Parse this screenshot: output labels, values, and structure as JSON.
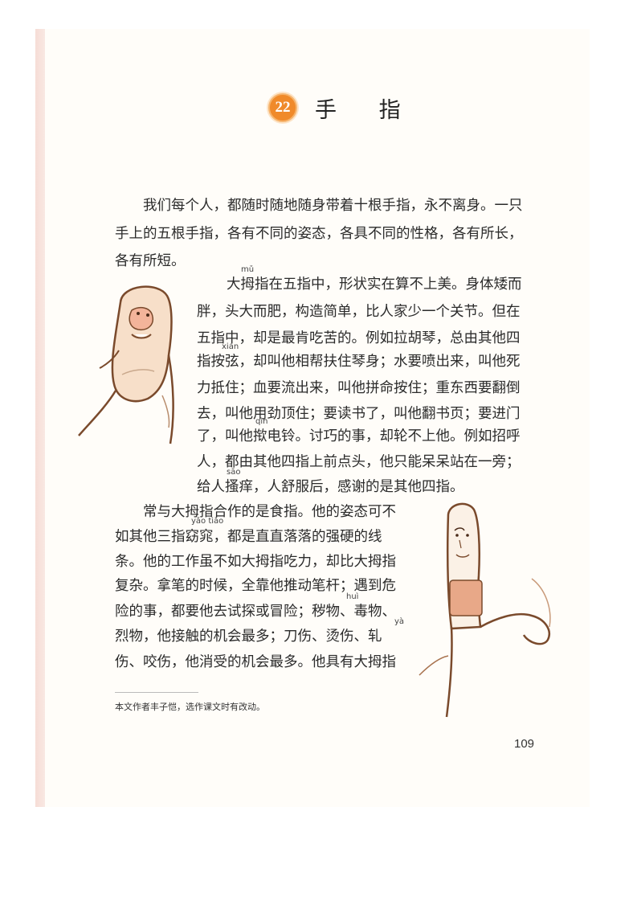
{
  "lesson": {
    "number": "22",
    "title": "手 指"
  },
  "paragraph1": [
    "我们每个人，都随时随地随身带着十根手指，永不离身。一只",
    "手上的五根手指，各有不同的姿态，各具不同的性格，各有所长，",
    "各有所短。"
  ],
  "paragraph2": [
    "大拇指在五指中，形状实在算不上美。身体矮而",
    "胖，头大而肥，构造简单，比人家少一个关节。但在",
    "五指中，却是最肯吃苦的。例如拉胡琴，总由其他四",
    "指按弦，却叫他相帮扶住琴身；水要喷出来，叫他死",
    "力抵住；血要流出来，叫他拼命按住；重东西要翻倒",
    "去，叫他用劲顶住；要读书了，叫他翻书页；要进门",
    "了，叫他揿电铃。讨巧的事，却轮不上他。例如招呼",
    "人，都由其他四指上前点头，他只能呆呆站在一旁；",
    "给人搔痒，人舒服后，感谢的是其他四指。"
  ],
  "paragraph3": [
    "常与大拇指合作的是食指。他的姿态可不",
    "如其他三指窈窕，都是直直落落的强硬的线",
    "条。他的工作虽不如大拇指吃力，却比大拇指",
    "复杂。拿笔的时候，全靠他推动笔杆；遇到危",
    "险的事，都要他去试探或冒险；秽物、毒物、",
    "烈物，他接触的机会最多；刀伤、烫伤、轧",
    "伤、咬伤，他消受的机会最多。他具有大拇指"
  ],
  "pinyin": {
    "mu": "mǔ",
    "xian": "xián",
    "qin": "qìn",
    "sao": "sāo",
    "yaotiao": "yǎo tiǎo",
    "hui": "huì",
    "ya": "yà"
  },
  "footnote": "本文作者丰子恺，选作课文时有改动。",
  "page_number": "109",
  "colors": {
    "badge": "#f08a2a",
    "edge_strip": "#f6ddd6",
    "ink": "#6b3b22",
    "skin": "#f4d2b8"
  },
  "illustrations": [
    "thumb-character",
    "index-finger-character"
  ]
}
